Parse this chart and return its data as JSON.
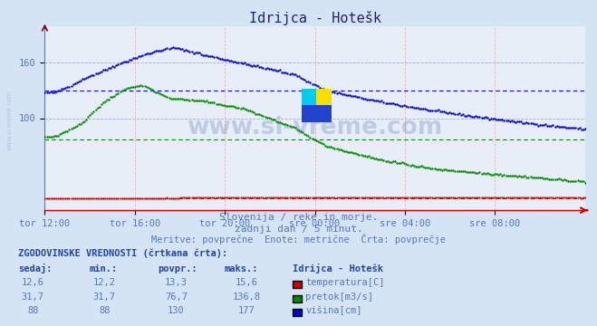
{
  "title": "Idrijca - Hotešk",
  "bg_color": "#d4e4f4",
  "plot_bg_color": "#e8eef8",
  "x_labels": [
    "tor 12:00",
    "tor 16:00",
    "tor 20:00",
    "sre 00:00",
    "sre 04:00",
    "sre 08:00"
  ],
  "x_ticks_norm": [
    0.0,
    0.1667,
    0.3333,
    0.5,
    0.6667,
    0.8333
  ],
  "ylim": [
    0,
    200
  ],
  "y_ticks": [
    100,
    160
  ],
  "subtitle1": "Slovenija / reke in morje.",
  "subtitle2": "zadnji dan / 5 minut.",
  "subtitle3": "Meritve: povprečne  Enote: metrične  Črta: povprečje",
  "table_header": "ZGODOVINSKE VREDNOSTI (črtkana črta):",
  "col_headers": [
    "sedaj:",
    "min.:",
    "povpr.:",
    "maks.:"
  ],
  "rows": [
    {
      "values": [
        "12,6",
        "12,2",
        "13,3",
        "15,6"
      ],
      "label": "temperatura[C]",
      "color": "#cc0000"
    },
    {
      "values": [
        "31,7",
        "31,7",
        "76,7",
        "136,8"
      ],
      "label": "pretok[m3/s]",
      "color": "#008800"
    },
    {
      "values": [
        "88",
        "88",
        "130",
        "177"
      ],
      "label": "višina[cm]",
      "color": "#0000cc"
    }
  ],
  "station_label": "Idrijca - Hotešk",
  "avg_visina": 130,
  "avg_pretok": 76.7,
  "avg_temp": 13.3,
  "color_visina": "#0000cc",
  "color_pretok": "#008800",
  "color_temp": "#cc0000",
  "text_color": "#5577bb",
  "title_color": "#222266",
  "label_color": "#2244aa",
  "grid_v_color": "#ffaaaa",
  "grid_h_color": "#aaaacc",
  "watermark": "www.si-vreme.com"
}
